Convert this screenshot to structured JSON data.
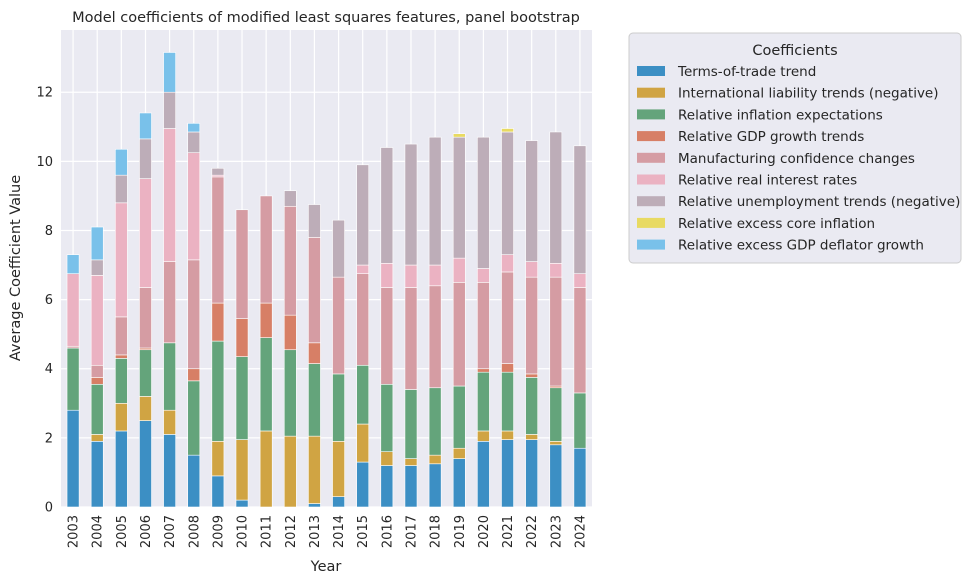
{
  "chart_data": {
    "type": "bar",
    "stacked": true,
    "title": "Model coefficients of modified least squares features, panel bootstrap",
    "xlabel": "Year",
    "ylabel": "Average Coefficient Value",
    "ylim": [
      0,
      13.8
    ],
    "yticks": [
      0,
      2,
      4,
      6,
      8,
      10,
      12
    ],
    "grid": true,
    "legend_title": "Coefficients",
    "legend_position": "outside-right",
    "categories": [
      "2003",
      "2004",
      "2005",
      "2006",
      "2007",
      "2008",
      "2009",
      "2010",
      "2011",
      "2012",
      "2013",
      "2014",
      "2015",
      "2016",
      "2017",
      "2018",
      "2019",
      "2020",
      "2021",
      "2022",
      "2023",
      "2024"
    ],
    "series": [
      {
        "name": "Terms-of-trade trend",
        "color": "#3c8fc4",
        "values": [
          2.8,
          1.9,
          2.2,
          2.5,
          2.1,
          1.5,
          0.9,
          0.2,
          0.0,
          0.0,
          0.1,
          0.3,
          1.3,
          1.2,
          1.2,
          1.25,
          1.4,
          1.9,
          1.95,
          1.95,
          1.8,
          1.7
        ]
      },
      {
        "name": "International liability trends (negative)",
        "color": "#d0a443",
        "values": [
          0.0,
          0.2,
          0.8,
          0.7,
          0.7,
          0.0,
          1.0,
          1.75,
          2.2,
          2.05,
          1.95,
          1.6,
          1.1,
          0.4,
          0.2,
          0.25,
          0.3,
          0.3,
          0.25,
          0.15,
          0.1,
          0.0
        ]
      },
      {
        "name": "Relative inflation expectations",
        "color": "#64a47b",
        "values": [
          1.8,
          1.45,
          1.3,
          1.35,
          1.95,
          2.15,
          2.9,
          2.4,
          2.7,
          2.5,
          2.1,
          1.95,
          1.7,
          1.95,
          2.0,
          1.95,
          1.8,
          1.7,
          1.7,
          1.65,
          1.55,
          1.6
        ]
      },
      {
        "name": "Relative GDP growth trends",
        "color": "#d77f66",
        "values": [
          0.0,
          0.2,
          0.1,
          0.05,
          0.0,
          0.35,
          1.1,
          1.1,
          1.0,
          1.0,
          0.6,
          0.0,
          0.0,
          0.0,
          0.0,
          0.0,
          0.0,
          0.1,
          0.25,
          0.1,
          0.05,
          0.0
        ]
      },
      {
        "name": "Manufacturing confidence changes",
        "color": "#d59ca3",
        "values": [
          0.05,
          0.35,
          1.1,
          1.75,
          2.35,
          3.15,
          3.65,
          3.15,
          3.1,
          3.15,
          3.05,
          2.8,
          2.65,
          2.8,
          2.95,
          2.95,
          3.0,
          2.5,
          2.65,
          2.8,
          3.15,
          3.05
        ]
      },
      {
        "name": "Relative real interest rates",
        "color": "#ebb2c2",
        "values": [
          2.1,
          2.6,
          3.3,
          3.15,
          3.85,
          3.1,
          0.05,
          0.0,
          0.0,
          0.0,
          0.0,
          0.0,
          0.25,
          0.7,
          0.65,
          0.6,
          0.7,
          0.4,
          0.5,
          0.45,
          0.4,
          0.4
        ]
      },
      {
        "name": "Relative unemployment trends (negative)",
        "color": "#bdadb8",
        "values": [
          0.0,
          0.45,
          0.8,
          1.15,
          1.05,
          0.6,
          0.2,
          0.0,
          0.0,
          0.45,
          0.95,
          1.65,
          2.9,
          3.35,
          3.5,
          3.7,
          3.5,
          3.8,
          3.55,
          3.5,
          3.8,
          3.7
        ]
      },
      {
        "name": "Relative excess core inflation",
        "color": "#e8da62",
        "values": [
          0.0,
          0.0,
          0.0,
          0.0,
          0.0,
          0.0,
          0.0,
          0.0,
          0.0,
          0.0,
          0.0,
          0.0,
          0.0,
          0.0,
          0.0,
          0.0,
          0.1,
          0.0,
          0.1,
          0.0,
          0.0,
          0.0
        ]
      },
      {
        "name": "Relative excess GDP deflator growth",
        "color": "#79c1ea",
        "values": [
          0.55,
          0.95,
          0.75,
          0.75,
          1.15,
          0.25,
          0.0,
          0.0,
          0.0,
          0.0,
          0.0,
          0.0,
          0.0,
          0.0,
          0.0,
          0.0,
          0.0,
          0.0,
          0.0,
          0.0,
          0.0,
          0.0
        ]
      }
    ]
  }
}
